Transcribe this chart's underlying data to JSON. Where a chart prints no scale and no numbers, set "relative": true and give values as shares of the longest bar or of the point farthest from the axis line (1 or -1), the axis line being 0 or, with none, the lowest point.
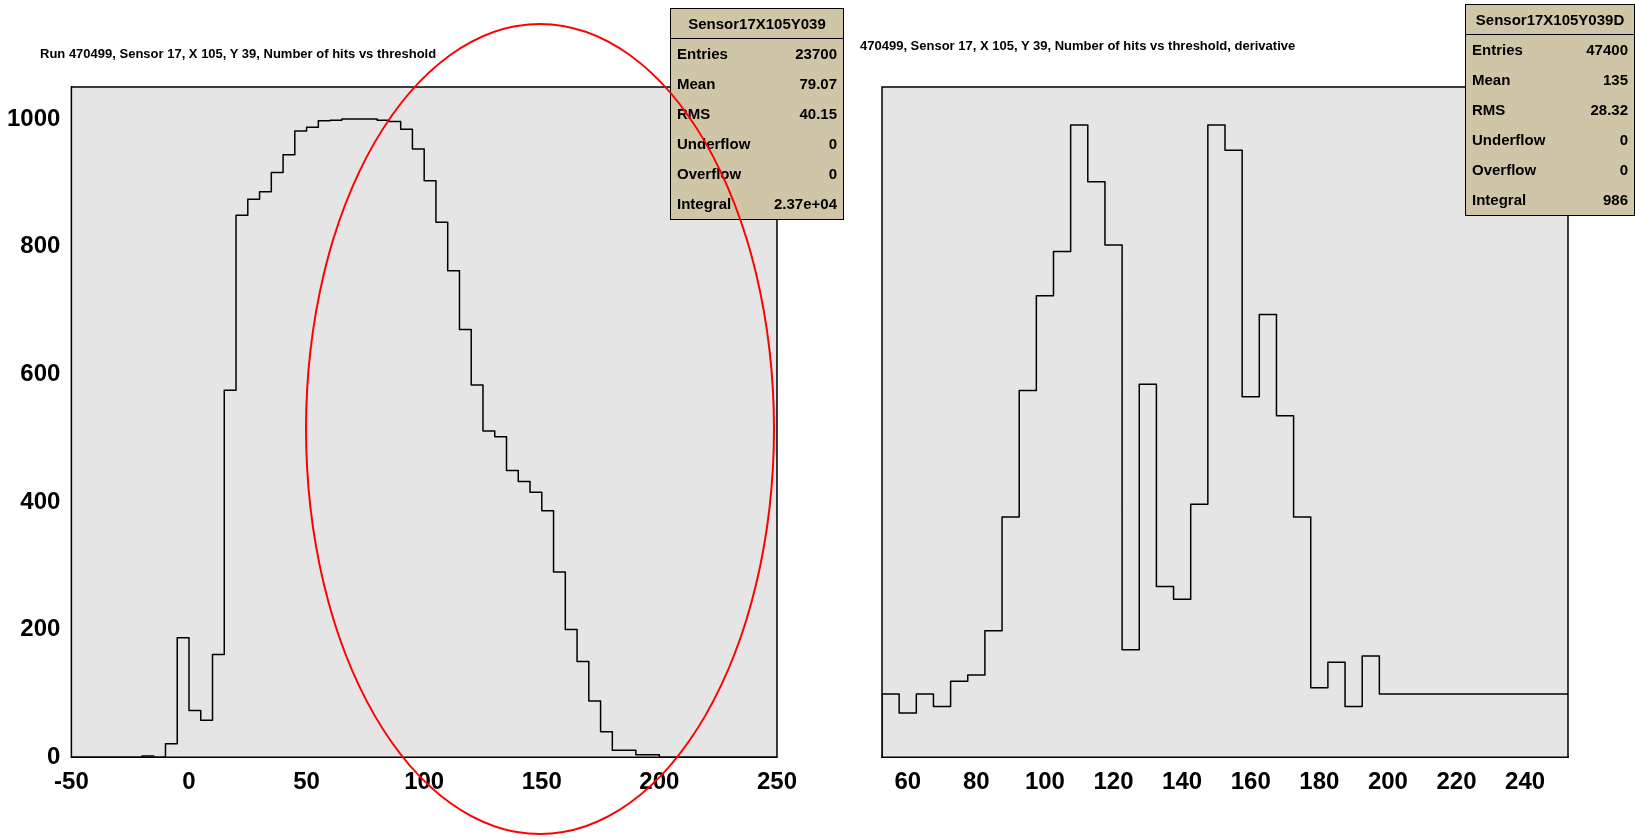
{
  "chart_data": [
    {
      "type": "histogram",
      "title": "Run 470499, Sensor 17, X 105, Y 39, Number of hits vs threshold",
      "color": "#000000",
      "bins": [
        -50,
        -45,
        -40,
        -35,
        -30,
        -25,
        -20,
        -15,
        -10,
        -5,
        0,
        5,
        10,
        15,
        20,
        25,
        30,
        35,
        40,
        45,
        50,
        55,
        60,
        65,
        70,
        75,
        80,
        85,
        90,
        95,
        100,
        105,
        110,
        115,
        120,
        125,
        130,
        135,
        140,
        145,
        150,
        155,
        160,
        165,
        170,
        175,
        180,
        185,
        190,
        195,
        200,
        205,
        210,
        215,
        220,
        225,
        230,
        235,
        240,
        245,
        250
      ],
      "values": [
        0,
        0,
        0,
        0,
        0,
        0,
        2,
        0,
        21,
        187,
        73,
        58,
        161,
        575,
        849,
        874,
        886,
        916,
        944,
        981,
        987,
        997,
        998,
        1000,
        1000,
        1000,
        998,
        996,
        984,
        953,
        903,
        838,
        762,
        670,
        583,
        511,
        502,
        449,
        432,
        415,
        386,
        290,
        200,
        150,
        88,
        40,
        11,
        11,
        4,
        4,
        0,
        0,
        0,
        0,
        0,
        0,
        0,
        0,
        0,
        0
      ],
      "xlim": [
        -50,
        250
      ],
      "xticks": [
        -50,
        0,
        50,
        100,
        150,
        200,
        250
      ],
      "ylim": [
        0,
        1050
      ],
      "yticks": [
        0,
        200,
        400,
        600,
        800,
        1000
      ],
      "annotations": [
        "Sensor17X105Y039",
        "Entries",
        "23700",
        "Mean",
        "79.07",
        "RMS",
        "40.15",
        "Underflow",
        "0",
        "Overflow",
        "0",
        "Integral",
        "2.37e+04"
      ]
    },
    {
      "type": "step",
      "title": "470499, Sensor 17, X 105, Y 39, Number of hits vs threshold, derivative",
      "color": "#000000",
      "x": [
        52.5,
        57.5,
        62.5,
        67.5,
        72.5,
        77.5,
        82.5,
        87.5,
        92.5,
        97.5,
        102.5,
        107.5,
        112.5,
        117.5,
        122.5,
        127.5,
        132.5,
        137.5,
        142.5,
        147.5,
        152.5,
        157.5,
        162.5,
        167.5,
        172.5,
        177.5,
        182.5,
        187.5,
        192.5,
        197.5,
        202.5,
        207.5,
        212.5,
        217.5,
        222.5,
        227.5,
        232.5,
        237.5,
        242.5,
        247.5,
        252.5
      ],
      "values": [
        0,
        0.1,
        0.07,
        0.1,
        0.08,
        0.12,
        0.13,
        0.2,
        0.38,
        0.58,
        0.73,
        0.8,
        1,
        0.91,
        0.81,
        0.17,
        0.59,
        0.27,
        0.25,
        0.4,
        1,
        0.96,
        0.57,
        0.7,
        0.54,
        0.38,
        0.11,
        0.15,
        0.08,
        0.16,
        0.1,
        0.1,
        0.1,
        0.1,
        0.1,
        0.1,
        0.1,
        0.1,
        0.1,
        0.1,
        0.1
      ],
      "relative": true,
      "xlim": [
        52.5,
        252.5
      ],
      "xticks": [
        60,
        80,
        100,
        120,
        140,
        160,
        180,
        200,
        220,
        240
      ],
      "annotations": [
        "Sensor17X105Y039D",
        "Entries",
        "47400",
        "Mean",
        "135",
        "RMS",
        "28.32",
        "Underflow",
        "0",
        "Overflow",
        "0",
        "Integral",
        "986"
      ]
    }
  ]
}
